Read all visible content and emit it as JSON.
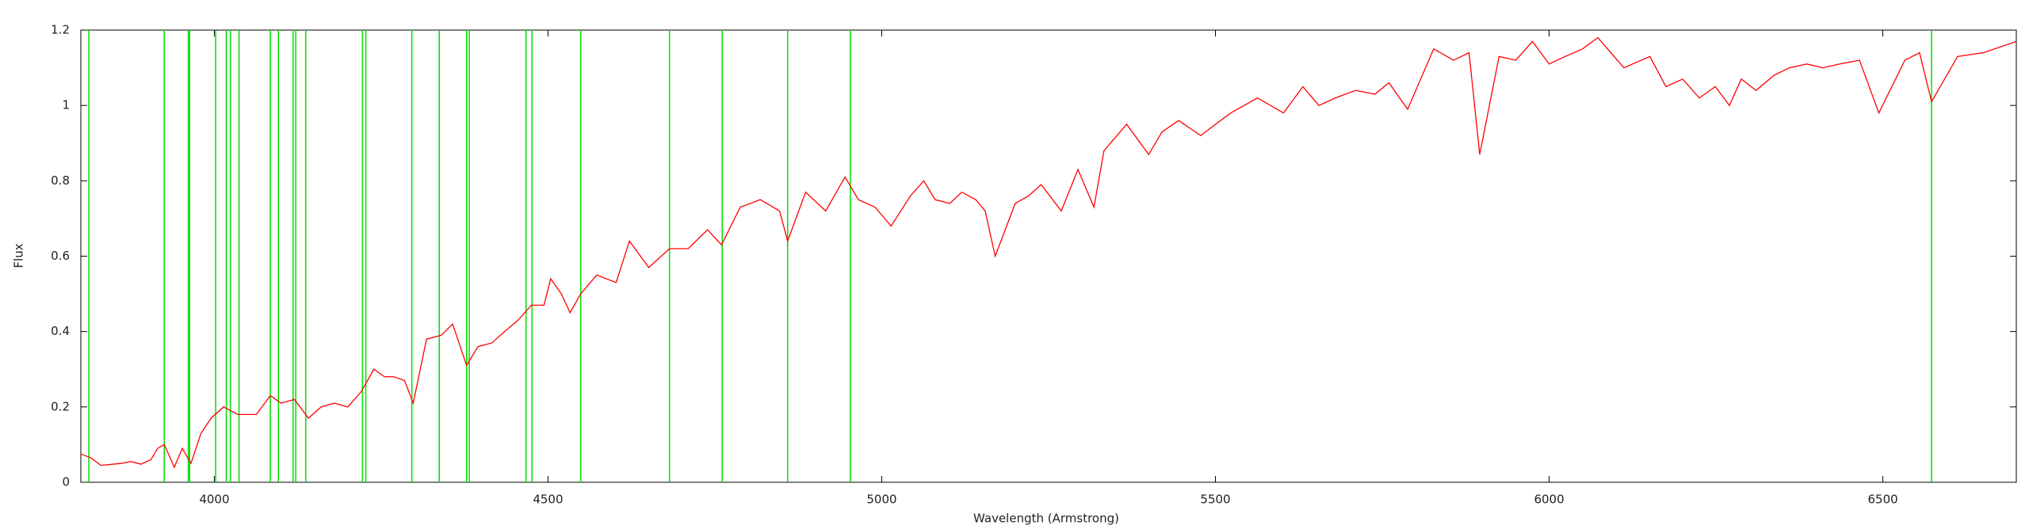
{
  "chart_data": {
    "type": "line",
    "x_label": "Wavelength (Armstrong)",
    "y_label": "Flux",
    "xlim": [
      3800,
      6700
    ],
    "ylim": [
      0,
      1.2
    ],
    "xticks": [
      4000,
      4500,
      5000,
      5500,
      6000,
      6500
    ],
    "yticks": [
      0,
      0.2,
      0.4,
      0.6,
      0.8,
      1,
      1.2
    ],
    "grid": false,
    "line_color": "#ff0000",
    "vertical_line_color": "#00dd00",
    "vertical_lines": [
      3812,
      3925,
      3961,
      3963,
      4002,
      4018,
      4024,
      4037,
      4084,
      4096,
      4118,
      4122,
      4137,
      4222,
      4227,
      4296,
      4337,
      4378,
      4382,
      4467,
      4476,
      4549,
      4682,
      4761,
      4859,
      4953,
      6573
    ],
    "x": [
      3800,
      3815,
      3830,
      3860,
      3875,
      3890,
      3905,
      3915,
      3925,
      3940,
      3952,
      3965,
      3980,
      3995,
      4014,
      4035,
      4063,
      4084,
      4100,
      4120,
      4141,
      4160,
      4180,
      4200,
      4220,
      4239,
      4255,
      4269,
      4285,
      4298,
      4318,
      4340,
      4357,
      4378,
      4395,
      4416,
      4435,
      4455,
      4475,
      4494,
      4504,
      4520,
      4533,
      4549,
      4573,
      4602,
      4622,
      4651,
      4682,
      4710,
      4739,
      4760,
      4788,
      4818,
      4847,
      4859,
      4886,
      4916,
      4945,
      4965,
      4990,
      5014,
      5043,
      5063,
      5080,
      5102,
      5120,
      5141,
      5155,
      5170,
      5200,
      5220,
      5239,
      5269,
      5294,
      5318,
      5333,
      5367,
      5400,
      5420,
      5445,
      5478,
      5500,
      5523,
      5563,
      5602,
      5631,
      5655,
      5680,
      5710,
      5739,
      5760,
      5788,
      5827,
      5857,
      5880,
      5896,
      5925,
      5950,
      5975,
      6000,
      6024,
      6050,
      6073,
      6112,
      6151,
      6175,
      6200,
      6225,
      6249,
      6270,
      6288,
      6310,
      6337,
      6360,
      6386,
      6410,
      6435,
      6465,
      6494,
      6533,
      6555,
      6573,
      6612,
      6651,
      6700
    ],
    "values": [
      0.075,
      0.065,
      0.045,
      0.05,
      0.055,
      0.048,
      0.06,
      0.09,
      0.1,
      0.04,
      0.09,
      0.05,
      0.13,
      0.17,
      0.2,
      0.18,
      0.18,
      0.23,
      0.21,
      0.22,
      0.17,
      0.2,
      0.21,
      0.2,
      0.24,
      0.3,
      0.28,
      0.28,
      0.27,
      0.21,
      0.38,
      0.39,
      0.42,
      0.31,
      0.36,
      0.37,
      0.4,
      0.43,
      0.47,
      0.47,
      0.54,
      0.5,
      0.45,
      0.5,
      0.55,
      0.53,
      0.64,
      0.57,
      0.62,
      0.62,
      0.67,
      0.63,
      0.73,
      0.75,
      0.72,
      0.64,
      0.77,
      0.72,
      0.81,
      0.75,
      0.73,
      0.68,
      0.76,
      0.8,
      0.75,
      0.74,
      0.77,
      0.75,
      0.72,
      0.6,
      0.74,
      0.76,
      0.79,
      0.72,
      0.83,
      0.73,
      0.88,
      0.95,
      0.87,
      0.93,
      0.96,
      0.92,
      0.95,
      0.98,
      1.02,
      0.98,
      1.05,
      1.0,
      1.02,
      1.04,
      1.03,
      1.06,
      0.99,
      1.15,
      1.12,
      1.14,
      0.87,
      1.13,
      1.12,
      1.17,
      1.11,
      1.13,
      1.15,
      1.18,
      1.1,
      1.13,
      1.05,
      1.07,
      1.02,
      1.05,
      1.0,
      1.07,
      1.04,
      1.08,
      1.1,
      1.11,
      1.1,
      1.11,
      1.12,
      0.98,
      1.12,
      1.14,
      1.01,
      1.13,
      1.14,
      1.17
    ]
  }
}
